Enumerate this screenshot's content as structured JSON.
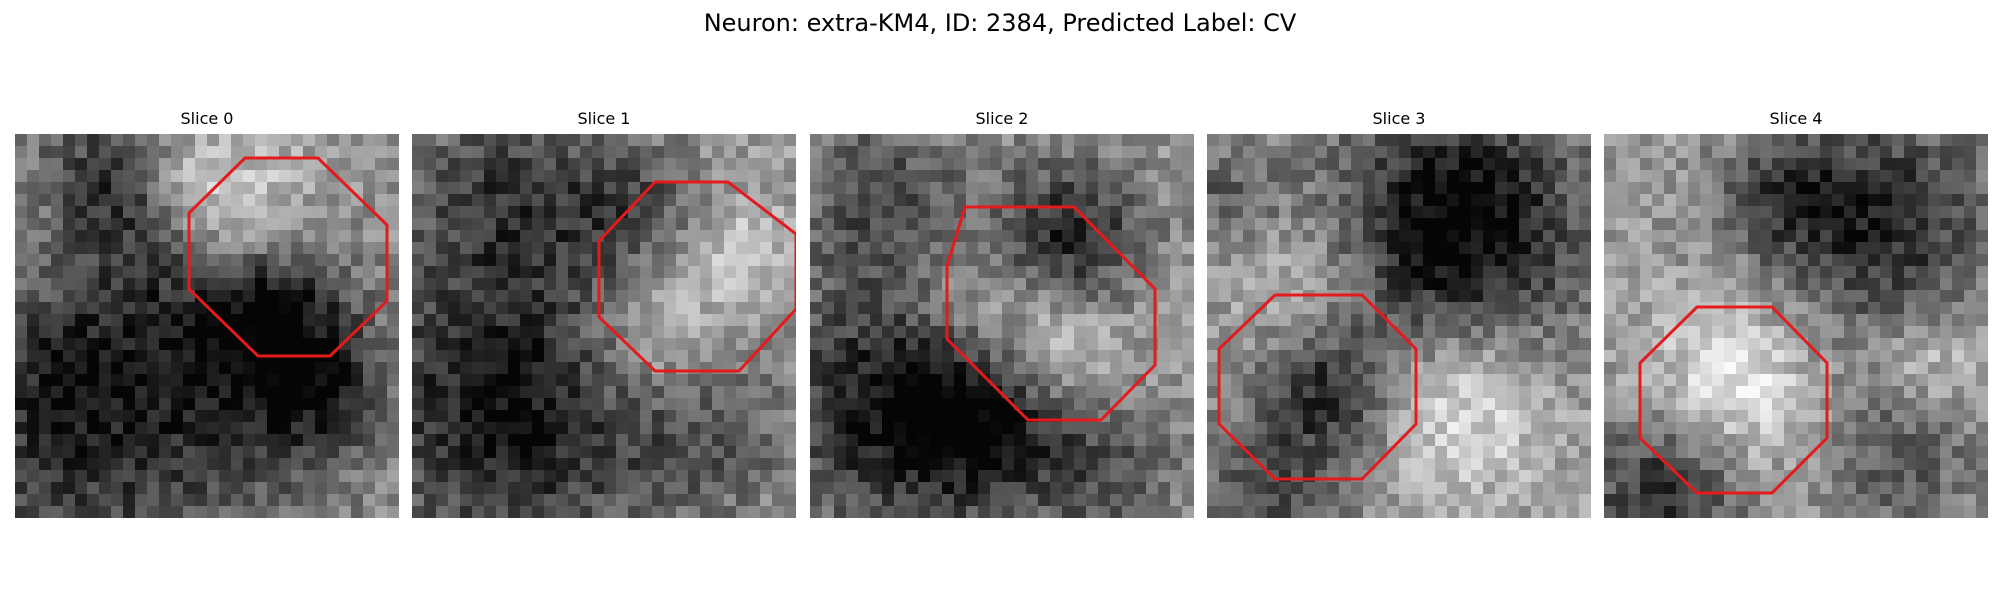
{
  "figure": {
    "title": "Neuron: extra-KM4, ID: 2384, Predicted Label: CV",
    "overlay_color": "#e41a1c"
  },
  "panels": [
    {
      "title": "Slice 0"
    },
    {
      "title": "Slice 1"
    },
    {
      "title": "Slice 2"
    },
    {
      "title": "Slice 3"
    },
    {
      "title": "Slice 4"
    }
  ]
}
